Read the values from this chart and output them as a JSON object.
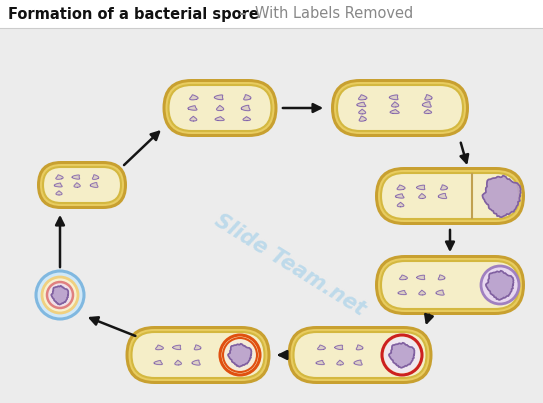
{
  "title_bold": "Formation of a bacterial spore",
  "title_dash": " – ",
  "title_light": "With Labels Removed",
  "bg_color": "#ececec",
  "title_bg": "#ffffff",
  "bact_fill": "#f5eec8",
  "bact_outer": "#c8a030",
  "bact_mid": "#e8cc60",
  "bact_inner_line": "#d4b840",
  "chrom_color": "#9070b0",
  "chrom_ec": "#7050a0",
  "spore_fill": "#b8a0cc",
  "spore_ec": "#8060a0",
  "arrow_color": "#151515",
  "wm_color": "#90c8e8",
  "red_ring": "#cc2020",
  "orange_ring": "#e05010",
  "free_spore_blue": "#80b8e0",
  "free_spore_yellow": "#f0d080",
  "free_spore_red": "#e08080",
  "divider_color": "#c0a050",
  "spore_env_fill": "#e8d8f0",
  "spore_env_ec": "#a080c0"
}
